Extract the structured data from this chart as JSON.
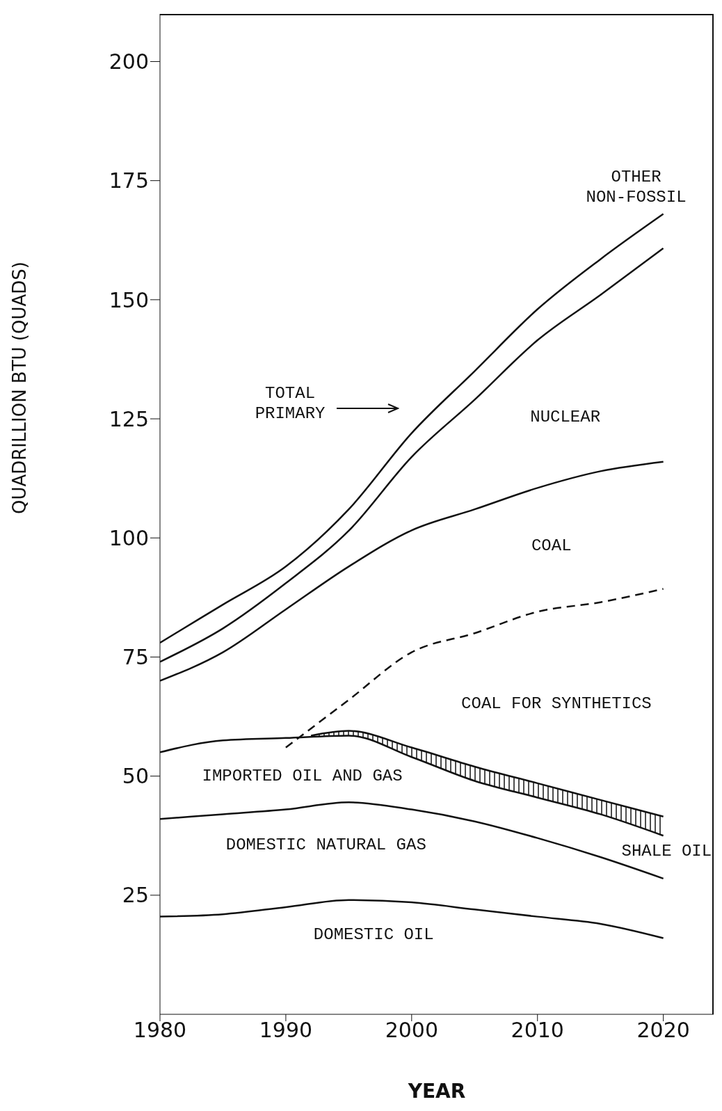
{
  "chart_data": {
    "type": "line",
    "xlabel": "YEAR",
    "ylabel": "QUADRILLION BTU (QUADS)",
    "xlim": [
      1980,
      2024
    ],
    "xticks": [
      1980,
      1990,
      2000,
      2010,
      2020
    ],
    "ylim": [
      0,
      210
    ],
    "yticks": [
      25,
      50,
      75,
      100,
      125,
      150,
      175,
      200
    ],
    "grid": false,
    "legend": false,
    "marker": "none",
    "line_style": "solid",
    "color": "#111111",
    "series": [
      {
        "x": [
          1980,
          1985,
          1990,
          1995,
          2000,
          2005,
          2010,
          2015,
          2020
        ],
        "values": [
          78,
          86,
          94,
          106,
          122,
          135,
          148,
          158.5,
          168
        ]
      },
      {
        "x": [
          1980,
          1985,
          1990,
          1995,
          2000,
          2005,
          2010,
          2015,
          2020
        ],
        "values": [
          74,
          81,
          90.5,
          101.5,
          117,
          129,
          141.5,
          151,
          160.8
        ]
      },
      {
        "x": [
          1980,
          1985,
          1990,
          1995,
          2000,
          2005,
          2010,
          2015,
          2020
        ],
        "values": [
          70,
          76,
          85,
          94,
          101.6,
          106,
          110.5,
          114,
          116
        ]
      },
      {
        "x": [
          1990,
          1995,
          2000,
          2005,
          2010,
          2015,
          2020
        ],
        "values": [
          56,
          66,
          76,
          80,
          84.5,
          86.5,
          89.3
        ],
        "line_style": "dashed"
      },
      {
        "x": [
          1980,
          1985,
          1990,
          1995,
          2000,
          2005,
          2010,
          2015,
          2020
        ],
        "values": [
          55,
          57.5,
          58,
          58.5,
          54,
          49,
          45.5,
          42,
          37.5
        ]
      },
      {
        "x": [
          1992,
          1995,
          2000,
          2005,
          2010,
          2015,
          2020
        ],
        "values": [
          58.5,
          59.5,
          56,
          52,
          48.5,
          45,
          41.5
        ],
        "lower": [
          58.2,
          58.5,
          54,
          49,
          45.5,
          42,
          37.5
        ],
        "upper": [
          58.5,
          59.5,
          56,
          52,
          48.5,
          45,
          41.5
        ]
      },
      {
        "x": [
          1980,
          1985,
          1990,
          1995,
          2000,
          2005,
          2010,
          2015,
          2020
        ],
        "values": [
          41,
          42,
          43,
          44.5,
          43,
          40.5,
          37,
          33,
          28.5
        ]
      },
      {
        "x": [
          1980,
          1985,
          1990,
          1995,
          2000,
          2005,
          2010,
          2015,
          2020
        ],
        "values": [
          20.5,
          21,
          22.5,
          24,
          23.5,
          22,
          20.5,
          19,
          16
        ]
      }
    ],
    "annotations": [
      "TOTAL\nPRIMARY",
      "OTHER\nNON-FOSSIL",
      "NUCLEAR",
      "COAL",
      "COAL FOR SYNTHETICS",
      "IMPORTED OIL AND GAS",
      "DOMESTIC NATURAL GAS",
      "DOMESTIC OIL",
      "SHALE OIL"
    ]
  }
}
